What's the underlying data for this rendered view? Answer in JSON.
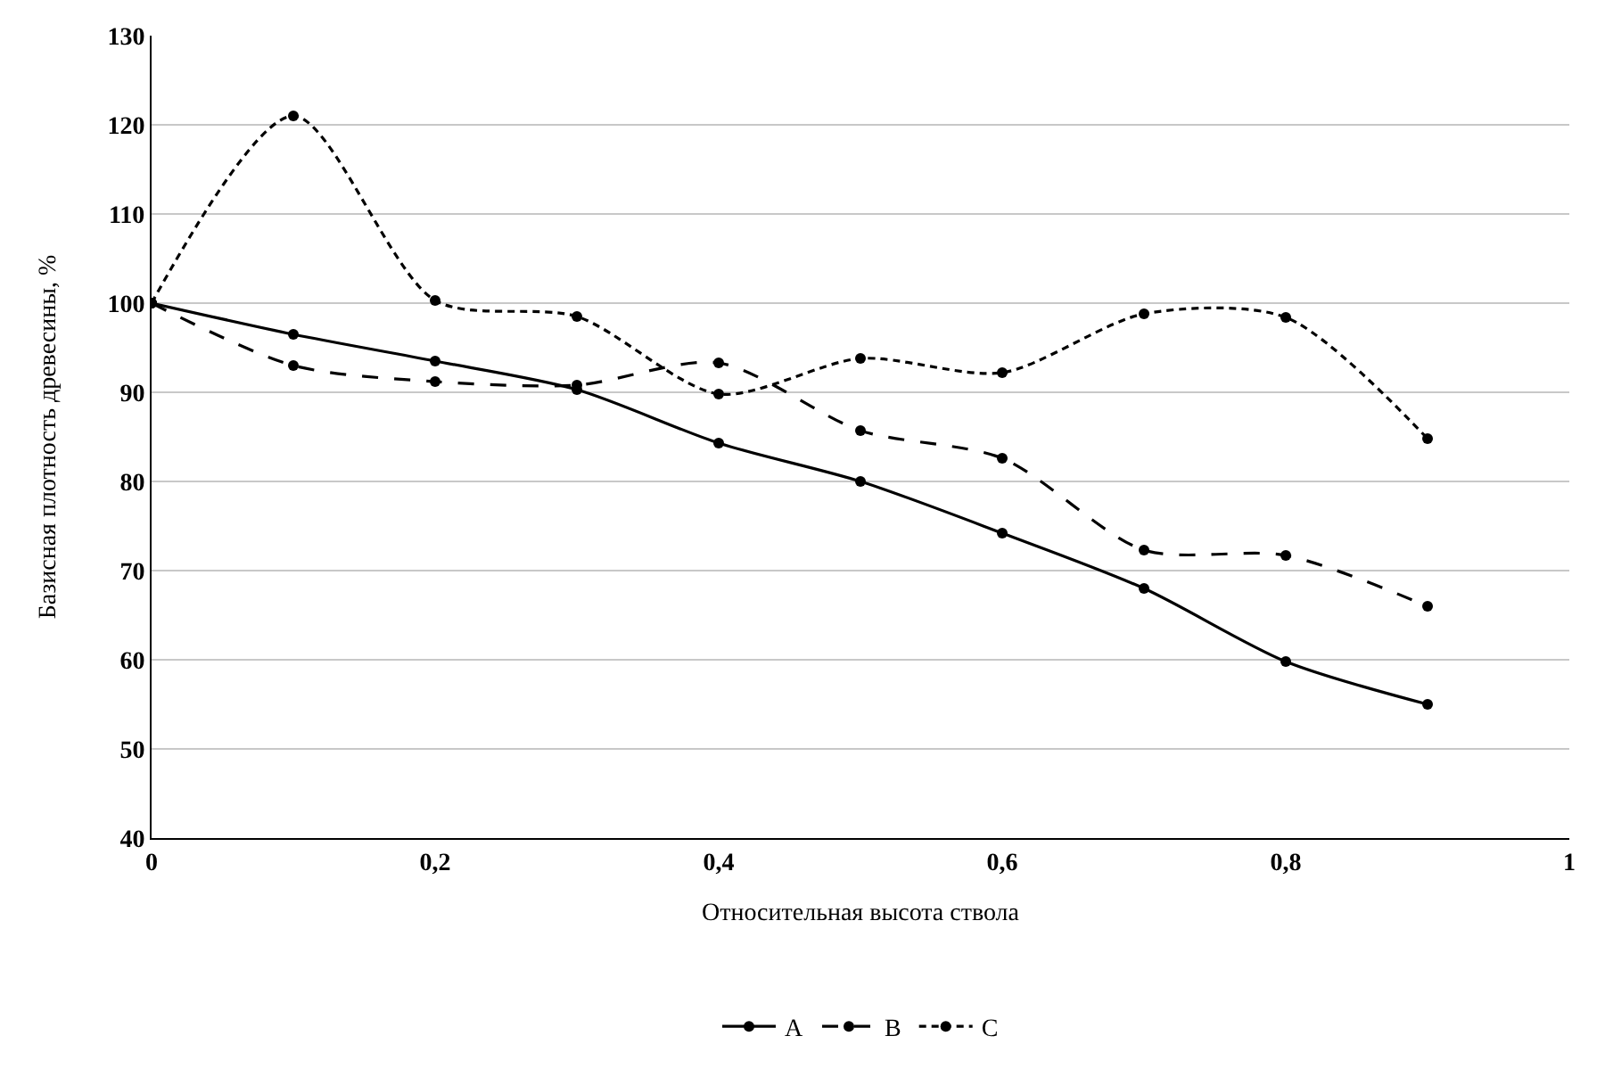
{
  "chart_data": {
    "type": "line",
    "xlabel": "Относительная высота ствола",
    "ylabel": "Базисная плотность древесины, %",
    "x": [
      0,
      0.1,
      0.2,
      0.3,
      0.4,
      0.5,
      0.6,
      0.7,
      0.8,
      0.9
    ],
    "series": [
      {
        "name": "A",
        "color": "#000000",
        "line_style": "solid",
        "values": [
          100,
          96.5,
          93.5,
          90.3,
          84.3,
          80,
          74.2,
          68,
          59.8,
          55
        ]
      },
      {
        "name": "B",
        "color": "#000000",
        "line_style": "dashed",
        "values": [
          100,
          93,
          91.2,
          90.8,
          93.3,
          85.7,
          82.6,
          72.3,
          71.7,
          66
        ]
      },
      {
        "name": "C",
        "color": "#000000",
        "line_style": "dotted",
        "values": [
          100,
          121,
          100.3,
          98.5,
          89.8,
          93.8,
          92.2,
          98.8,
          98.4,
          84.8
        ]
      }
    ],
    "xlim": [
      0,
      1
    ],
    "xticks": [
      0,
      {
        "value": 0.2,
        "label": "0,2"
      },
      {
        "value": 0.4,
        "label": "0,4"
      },
      {
        "value": 0.6,
        "label": "0,6"
      },
      {
        "value": 0.8,
        "label": "0,8"
      },
      1
    ],
    "ylim": [
      40,
      130
    ],
    "yticks": [
      40,
      50,
      60,
      70,
      80,
      90,
      100,
      110,
      120,
      130
    ],
    "grid": "y",
    "legend": "bottom",
    "marker": "circle"
  }
}
